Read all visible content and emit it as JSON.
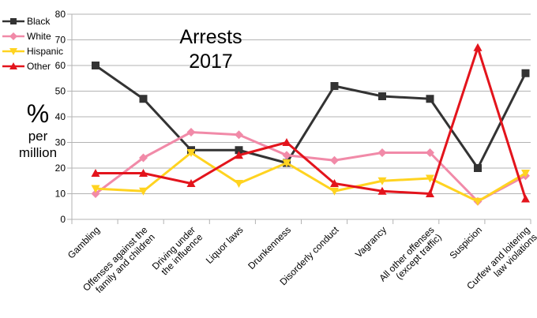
{
  "chart_data": {
    "type": "line",
    "title": "Arrests 2017",
    "title_lines": [
      "Arrests",
      "2017"
    ],
    "ylabel": "% per million",
    "ylabel_lines": [
      "%",
      "per",
      "million"
    ],
    "ylim": [
      0,
      80
    ],
    "yticks": [
      "0",
      "10",
      "20",
      "30",
      "40",
      "50",
      "60",
      "70",
      "80"
    ],
    "grid": "horizontal",
    "legend_position": "top-left",
    "categories": [
      [
        "Gambling"
      ],
      [
        "Offenses against the",
        "family and children"
      ],
      [
        "Driving under",
        "the influence"
      ],
      [
        "Liquor laws"
      ],
      [
        "Drunkenness"
      ],
      [
        "Disorderly conduct"
      ],
      [
        "Vagrancy"
      ],
      [
        "All other offenses",
        "(except traffic)"
      ],
      [
        "Suspicion"
      ],
      [
        "Curfew and loitering",
        "law violations"
      ]
    ],
    "series": [
      {
        "name": "Black",
        "color": "#333333",
        "marker": "square",
        "values": [
          60,
          47,
          27,
          27,
          22,
          52,
          48,
          47,
          20,
          57
        ]
      },
      {
        "name": "White",
        "color": "#f18aa8",
        "marker": "diamond",
        "values": [
          10,
          24,
          34,
          33,
          25,
          23,
          26,
          26,
          7,
          17
        ]
      },
      {
        "name": "Hispanic",
        "color": "#ffd320",
        "marker": "triangle-down",
        "values": [
          12,
          11,
          26,
          14,
          22,
          11,
          15,
          16,
          7,
          18
        ]
      },
      {
        "name": "Other",
        "color": "#e3141c",
        "marker": "triangle-up",
        "values": [
          18,
          18,
          14,
          25,
          30,
          14,
          11,
          10,
          67,
          8
        ]
      }
    ]
  }
}
